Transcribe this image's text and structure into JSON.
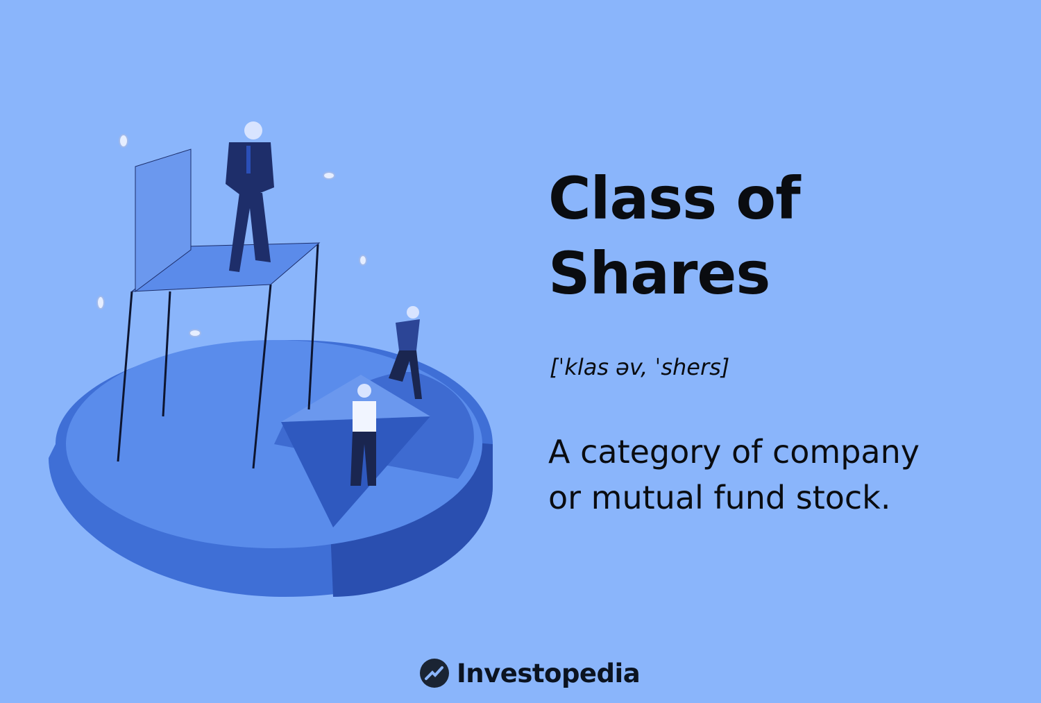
{
  "title": {
    "line1": "Class of",
    "line2": "Shares"
  },
  "pronunciation": "[ˈklas əv, ˈshers]",
  "definition": {
    "line1": "A category of company",
    "line2": "or mutual fund stock."
  },
  "brand": {
    "name": "Investopedia",
    "icon": "investopedia-logo-icon"
  },
  "colors": {
    "background": "#8ab5fb",
    "text": "#0a0c10",
    "pie_top": "#4f83e6",
    "pie_side": "#3f6fd6",
    "slice_dark": "#2b55b8"
  }
}
